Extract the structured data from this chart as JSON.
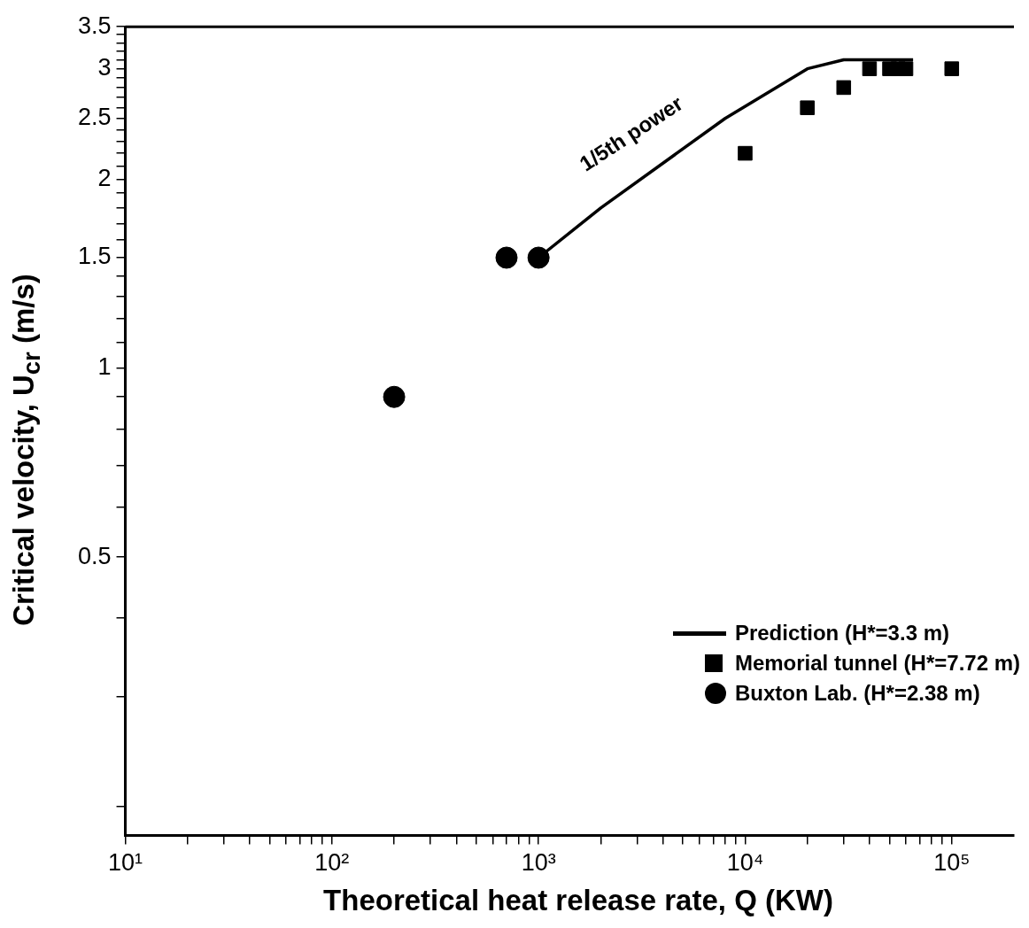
{
  "chart_data": {
    "type": "scatter",
    "xlabel": "Theoretical heat release rate, Q (KW)",
    "ylabel": "Critical velocity, U$_{cr}$ (m/s)",
    "log": "xy",
    "grid": false,
    "legend": "bottom right",
    "xlim": [
      10,
      200000
    ],
    "ylim": [
      0.18,
      3.5
    ],
    "xticks": [
      {
        "value": 10,
        "label": "10¹"
      },
      {
        "value": 20,
        "label": null
      },
      {
        "value": 30,
        "label": null
      },
      {
        "value": 40,
        "label": null
      },
      {
        "value": 50,
        "label": null
      },
      {
        "value": 60,
        "label": null
      },
      {
        "value": 70,
        "label": null
      },
      {
        "value": 80,
        "label": null
      },
      {
        "value": 90,
        "label": null
      },
      {
        "value": 100,
        "label": "10²"
      },
      {
        "value": 200,
        "label": null
      },
      {
        "value": 300,
        "label": null
      },
      {
        "value": 400,
        "label": null
      },
      {
        "value": 500,
        "label": null
      },
      {
        "value": 600,
        "label": null
      },
      {
        "value": 700,
        "label": null
      },
      {
        "value": 800,
        "label": null
      },
      {
        "value": 900,
        "label": null
      },
      {
        "value": 1000,
        "label": "10³"
      },
      {
        "value": 2000,
        "label": null
      },
      {
        "value": 3000,
        "label": null
      },
      {
        "value": 4000,
        "label": null
      },
      {
        "value": 5000,
        "label": null
      },
      {
        "value": 6000,
        "label": null
      },
      {
        "value": 7000,
        "label": null
      },
      {
        "value": 8000,
        "label": null
      },
      {
        "value": 9000,
        "label": null
      },
      {
        "value": 10000,
        "label": "10⁴"
      },
      {
        "value": 20000,
        "label": null
      },
      {
        "value": 30000,
        "label": null
      },
      {
        "value": 40000,
        "label": null
      },
      {
        "value": 50000,
        "label": null
      },
      {
        "value": 60000,
        "label": null
      },
      {
        "value": 70000,
        "label": null
      },
      {
        "value": 80000,
        "label": null
      },
      {
        "value": 90000,
        "label": null
      },
      {
        "value": 100000,
        "label": "10⁵"
      }
    ],
    "yticks": [
      {
        "value": 0.2,
        "label": null
      },
      {
        "value": 0.3,
        "label": null
      },
      {
        "value": 0.4,
        "label": null
      },
      0.5,
      {
        "value": 0.6,
        "label": null
      },
      {
        "value": 0.7,
        "label": null
      },
      {
        "value": 0.8,
        "label": null
      },
      {
        "value": 0.9,
        "label": null
      },
      1,
      {
        "value": 1.1,
        "label": null
      },
      {
        "value": 1.2,
        "label": null
      },
      {
        "value": 1.3,
        "label": null
      },
      {
        "value": 1.4,
        "label": null
      },
      1.5,
      {
        "value": 1.6,
        "label": null
      },
      {
        "value": 1.7,
        "label": null
      },
      {
        "value": 1.8,
        "label": null
      },
      {
        "value": 1.9,
        "label": null
      },
      2,
      {
        "value": 2.1,
        "label": null
      },
      {
        "value": 2.2,
        "label": null
      },
      {
        "value": 2.3,
        "label": null
      },
      {
        "value": 2.4,
        "label": null
      },
      2.5,
      {
        "value": 2.6,
        "label": null
      },
      {
        "value": 2.7,
        "label": null
      },
      {
        "value": 2.8,
        "label": null
      },
      {
        "value": 2.9,
        "label": null
      },
      3,
      {
        "value": 3.1,
        "label": null
      },
      {
        "value": 3.2,
        "label": null
      },
      {
        "value": 3.3,
        "label": null
      },
      {
        "value": 3.4,
        "label": null
      },
      3.5
    ],
    "series": [
      {
        "name": "Prediction (H*=3.3 m)",
        "type": "line",
        "color": "#000000",
        "marker": "none",
        "line_style": "solid",
        "x": [
          1000,
          2000,
          8000,
          20000,
          30000,
          65000
        ],
        "values": [
          1.5,
          1.8,
          2.5,
          3.0,
          3.1,
          3.1
        ]
      },
      {
        "name": "Memorial tunnel (H*=7.72 m)",
        "type": "scatter",
        "color": "#000000",
        "marker": "square",
        "x": [
          10000,
          20000,
          30000,
          40000,
          50000,
          55000,
          60000,
          100000
        ],
        "values": [
          2.2,
          2.6,
          2.8,
          3.0,
          3.0,
          3.0,
          3.0,
          3.0
        ]
      },
      {
        "name": "Buxton Lab. (H*=2.38 m)",
        "type": "scatter",
        "color": "#000000",
        "marker": "circle",
        "x": [
          200,
          700,
          1000
        ],
        "values": [
          0.9,
          1.5,
          1.5
        ]
      }
    ],
    "annotations": [
      "1/5th power"
    ]
  }
}
